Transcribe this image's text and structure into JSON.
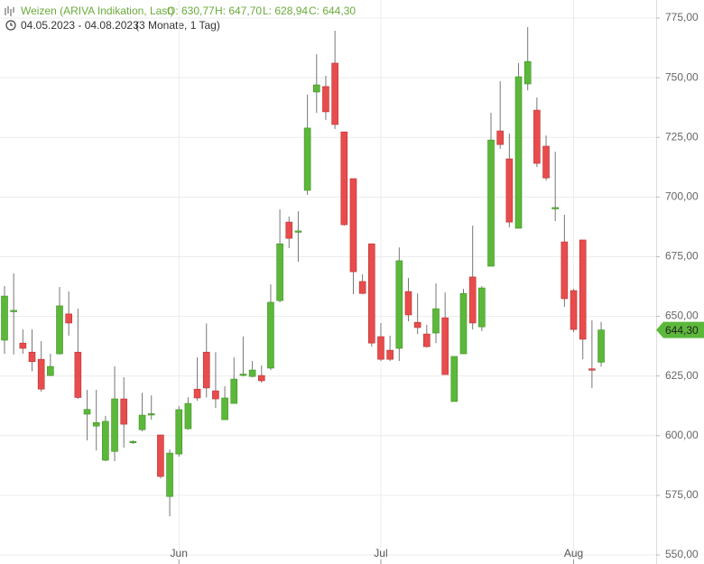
{
  "chart_data": {
    "type": "candlestick",
    "title": "Weizen (ARIVA Indikation, Last)",
    "ohlc_labels": [
      "O: 630,77",
      "H: 647,70",
      "L: 628,94",
      "C: 644,30"
    ],
    "date_range": "04.05.2023 - 04.08.2023",
    "period": "(3 Monate, 1 Tag)",
    "categories": [
      null,
      null,
      null,
      null,
      null,
      null,
      null,
      null,
      null,
      null,
      null,
      null,
      null,
      null,
      null,
      null,
      null,
      null,
      null,
      "Jun",
      null,
      null,
      null,
      null,
      null,
      null,
      null,
      null,
      null,
      null,
      null,
      null,
      null,
      null,
      null,
      null,
      null,
      null,
      null,
      null,
      null,
      "Jul",
      null,
      null,
      null,
      null,
      null,
      null,
      null,
      null,
      null,
      null,
      null,
      null,
      null,
      null,
      null,
      null,
      null,
      null,
      null,
      null,
      "Aug",
      null,
      null,
      null
    ],
    "open": [
      640,
      652,
      638.8,
      635,
      632,
      625.2,
      634.3,
      651,
      635,
      609,
      604,
      589.7,
      593.4,
      615.4,
      597.2,
      602.5,
      608.8,
      600.3,
      574.5,
      592.3,
      602.9,
      619.5,
      635,
      618.8,
      606.7,
      613.5,
      625.6,
      624.8,
      625.2,
      628.3,
      656.6,
      689.5,
      685.5,
      702.8,
      744,
      746.3,
      756.1,
      727.3,
      707.7,
      664.6,
      680.4,
      641.5,
      635.8,
      636.6,
      660.4,
      647.5,
      642.6,
      643,
      649.4,
      614.3,
      634.3,
      666.5,
      645.6,
      671,
      727.7,
      716,
      686.9,
      747.4,
      736.4,
      721.3,
      695.4,
      681.2,
      660.8,
      682,
      628,
      630.77
    ],
    "high": [
      662.7,
      668,
      644.5,
      644.5,
      639.6,
      634.3,
      662.3,
      660.4,
      653.2,
      619.2,
      619.2,
      608.3,
      629,
      624.5,
      598,
      618,
      616.9,
      600.3,
      594.2,
      612.4,
      616.1,
      632.8,
      647,
      635,
      620.7,
      632.8,
      641.5,
      631.3,
      629.4,
      663.4,
      694.8,
      691.8,
      694,
      742.9,
      759.9,
      750.8,
      769.7,
      727.3,
      707.7,
      667.6,
      680.4,
      647.2,
      641.9,
      678.9,
      666.1,
      659.6,
      646.4,
      663.8,
      660,
      633.2,
      661.5,
      688,
      662.7,
      735.3,
      748.5,
      726.6,
      756.1,
      771.2,
      741.7,
      725.8,
      719,
      692.6,
      661.5,
      682,
      648.3,
      647.7
    ],
    "low": [
      634.3,
      634,
      634.3,
      627,
      618.4,
      625,
      634,
      641.9,
      615.4,
      598,
      593.8,
      589.3,
      589.3,
      595,
      596.5,
      601.8,
      606.7,
      582.1,
      566.2,
      591.2,
      602.5,
      614.6,
      616,
      611.6,
      606.7,
      613.5,
      624.8,
      624.5,
      622.2,
      627.5,
      655.9,
      678.6,
      672.9,
      700.9,
      735.3,
      732.3,
      728.5,
      688,
      659.3,
      659.3,
      637.3,
      631.3,
      631.3,
      631.3,
      647.9,
      642.6,
      636.9,
      638.8,
      625.6,
      614.3,
      634.3,
      644.5,
      643.8,
      671,
      720.2,
      687.3,
      686.9,
      744.7,
      712.6,
      706.9,
      689.9,
      654,
      643.4,
      632,
      619.9,
      628.94
    ],
    "close": [
      658.5,
      652.5,
      636.6,
      631,
      619.5,
      629,
      654.4,
      647.2,
      616,
      611,
      605.5,
      606,
      615.4,
      604.8,
      597.6,
      608.6,
      609.2,
      582.9,
      592.7,
      610.9,
      613.5,
      615.8,
      620,
      615.4,
      615.8,
      623.7,
      625.8,
      627.5,
      623,
      655.9,
      680.4,
      682.7,
      685.8,
      728.9,
      747,
      735.7,
      730.4,
      688.4,
      668.7,
      659.6,
      638.8,
      632,
      632,
      673.3,
      650.6,
      645.3,
      637.3,
      653.2,
      625.6,
      633.2,
      659.6,
      647.2,
      661.9,
      723.9,
      722,
      689.5,
      750.4,
      756.8,
      714.1,
      708,
      695.6,
      657.4,
      644.5,
      640.4,
      627.7,
      644.3
    ],
    "up_color": "#5cb83a",
    "down_color": "#e84c4c",
    "last_price": {
      "value": 644.3,
      "label": "644,30"
    },
    "ylim": [
      550,
      775
    ],
    "yticks": [
      {
        "value": 550,
        "label": "550,00"
      },
      {
        "value": 575,
        "label": "575,00"
      },
      {
        "value": 600,
        "label": "600,00"
      },
      {
        "value": 625,
        "label": "625,00"
      },
      {
        "value": 650,
        "label": "650,00"
      },
      {
        "value": 675,
        "label": "675,00"
      },
      {
        "value": 700,
        "label": "700,00"
      },
      {
        "value": 725,
        "label": "725,00"
      },
      {
        "value": 750,
        "label": "750,00"
      },
      {
        "value": 775,
        "label": "775,00"
      }
    ],
    "grid": true
  }
}
